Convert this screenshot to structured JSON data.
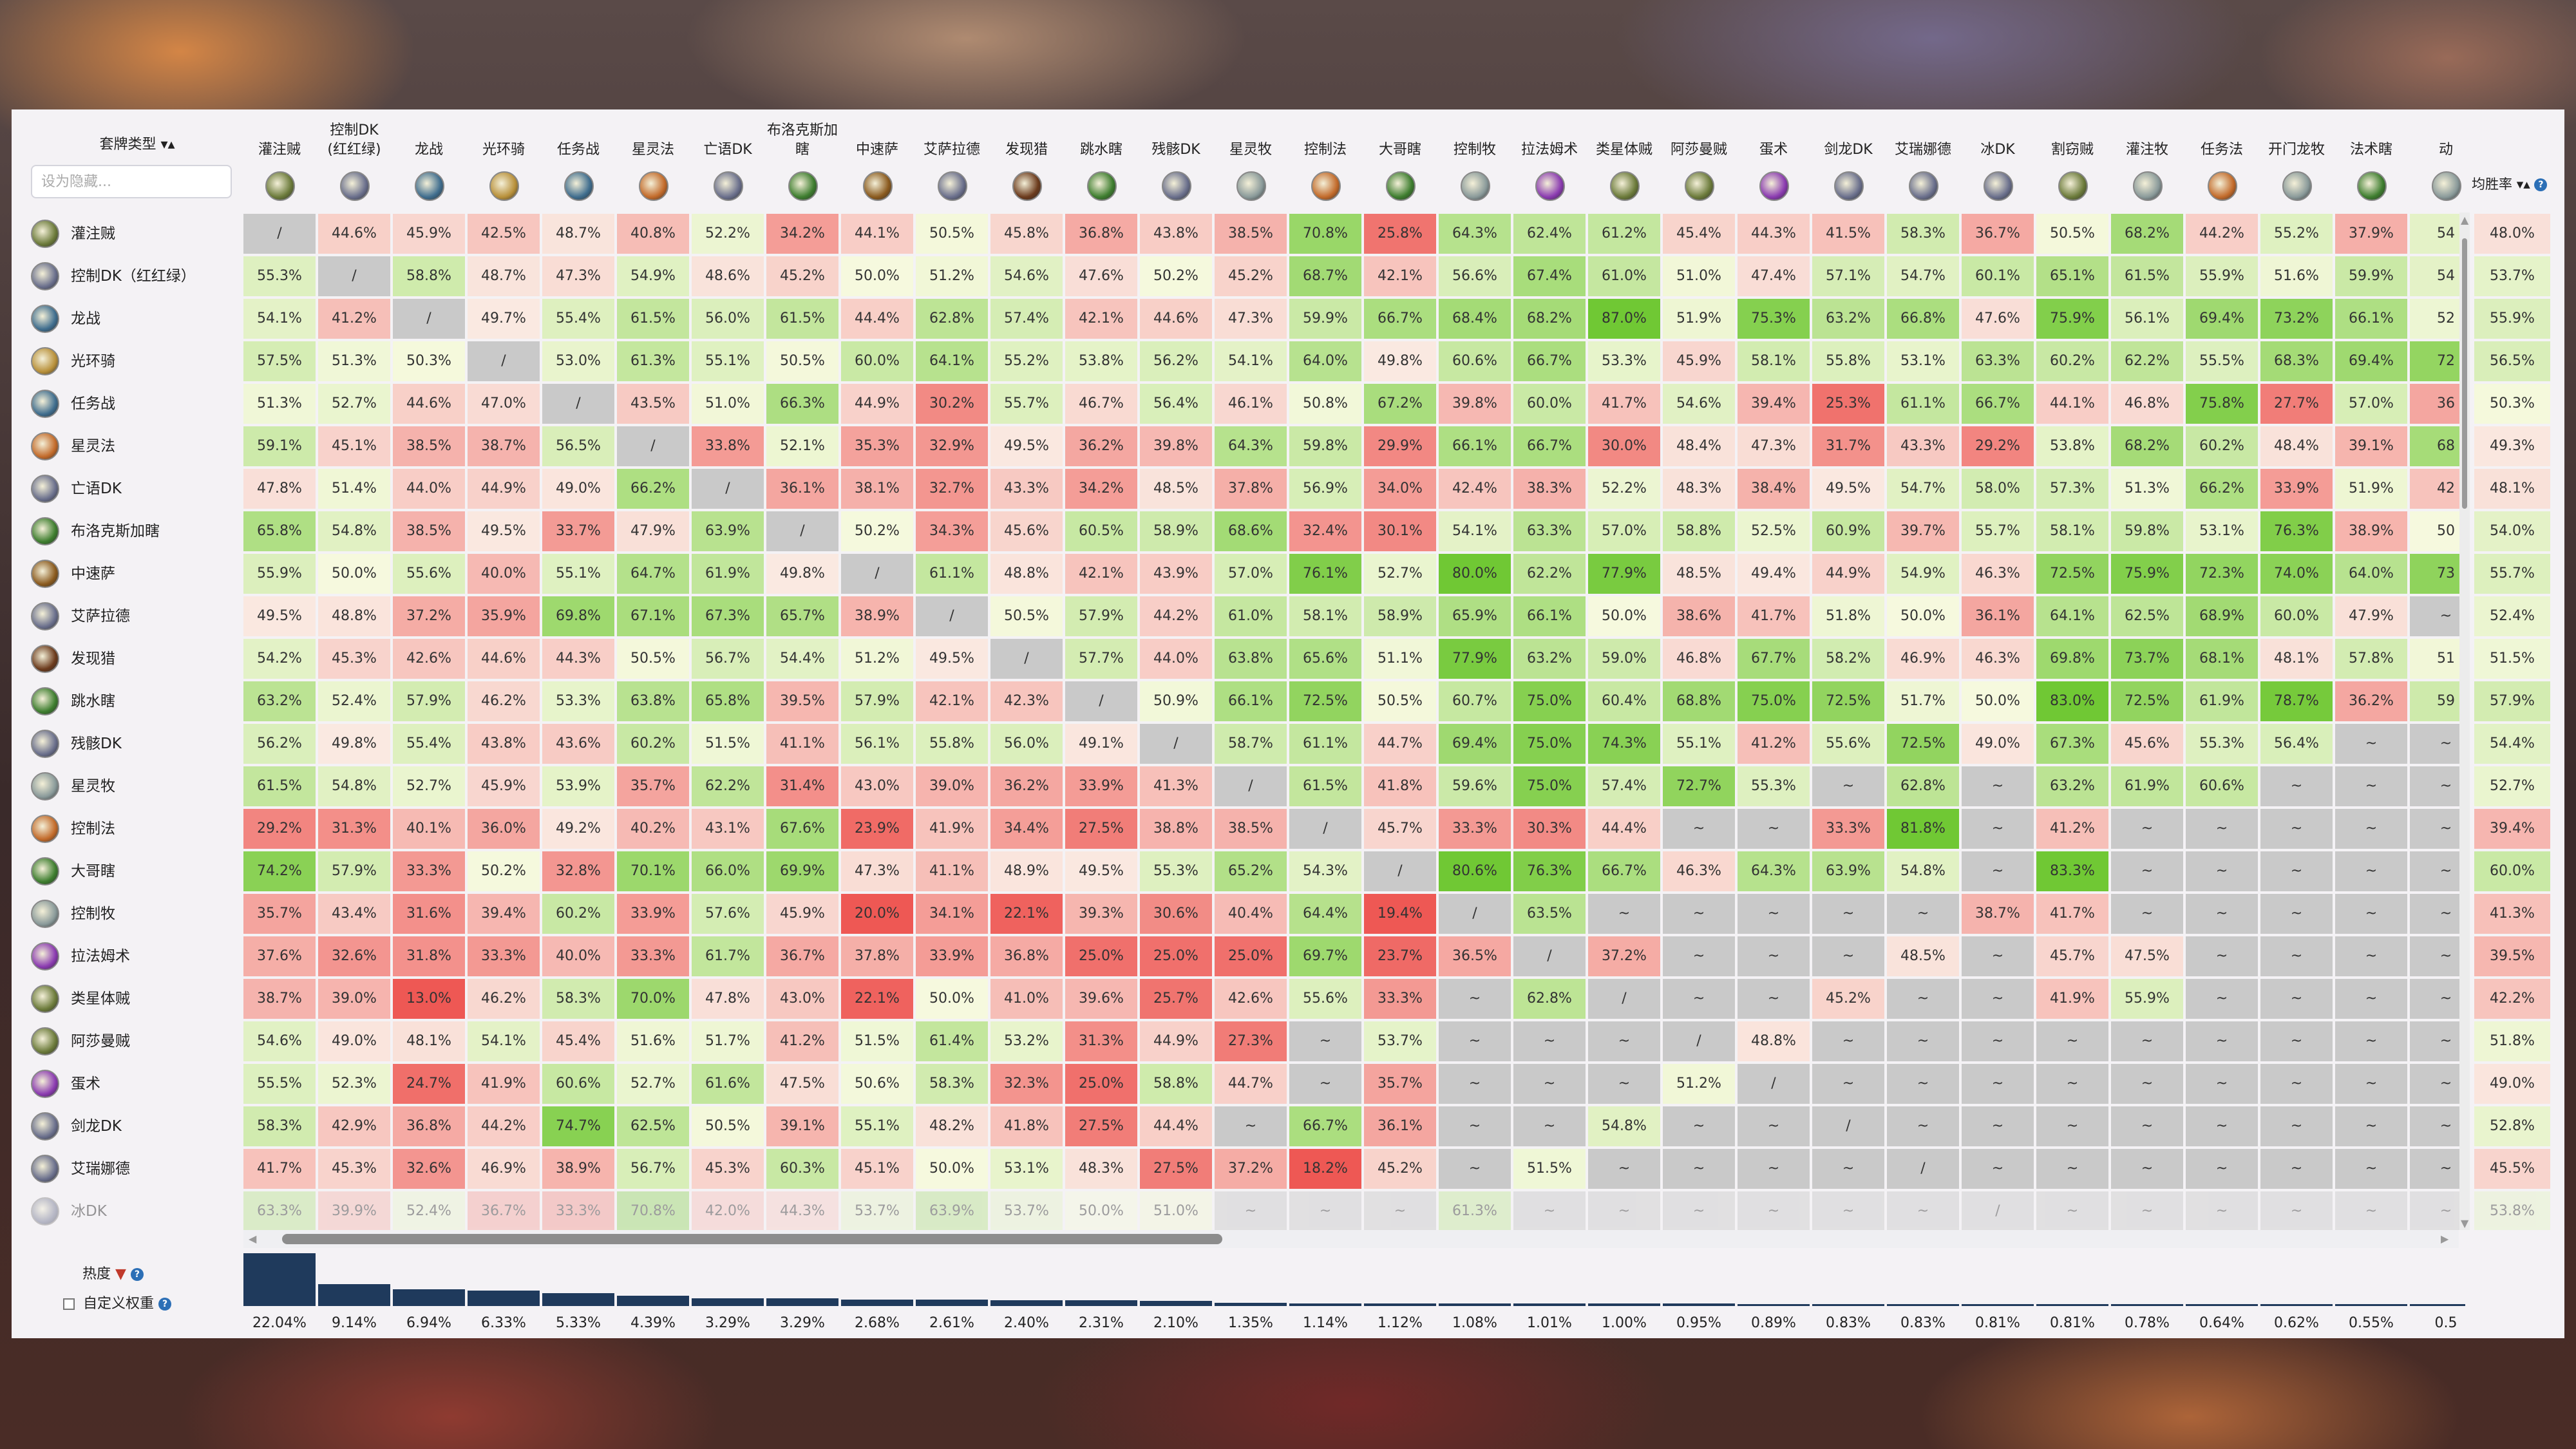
{
  "header": {
    "deck_type_label": "套牌类型",
    "search_placeholder": "设为隐藏...",
    "winrate_label": "均胜率"
  },
  "footer": {
    "popularity_label": "热度",
    "custom_weight_label": "自定义权重"
  },
  "colors": {
    "missing": "#c9c9c9",
    "diagonal": "#c9c9c9",
    "bar": "#1f3a5c"
  },
  "columns": [
    {
      "name": "灌注贼",
      "icon": "rogue-icon"
    },
    {
      "name": "控制DK\n(红红绿)",
      "icon": "death-knight-icon"
    },
    {
      "name": "龙战",
      "icon": "warrior-icon"
    },
    {
      "name": "光环骑",
      "icon": "paladin-icon"
    },
    {
      "name": "任务战",
      "icon": "warrior-icon"
    },
    {
      "name": "星灵法",
      "icon": "mage-icon"
    },
    {
      "name": "亡语DK",
      "icon": "death-knight-icon"
    },
    {
      "name": "布洛克斯加\n瞎",
      "icon": "demon-hunter-icon"
    },
    {
      "name": "中速萨",
      "icon": "shaman-icon"
    },
    {
      "name": "艾萨拉德",
      "icon": "death-knight-icon"
    },
    {
      "name": "发现猎",
      "icon": "hunter-icon"
    },
    {
      "name": "跳水瞎",
      "icon": "demon-hunter-icon"
    },
    {
      "name": "残骸DK",
      "icon": "death-knight-icon"
    },
    {
      "name": "星灵牧",
      "icon": "priest-icon"
    },
    {
      "name": "控制法",
      "icon": "mage-icon"
    },
    {
      "name": "大哥瞎",
      "icon": "demon-hunter-icon"
    },
    {
      "name": "控制牧",
      "icon": "priest-icon"
    },
    {
      "name": "拉法姆术",
      "icon": "warlock-icon"
    },
    {
      "name": "类星体贼",
      "icon": "rogue-icon"
    },
    {
      "name": "阿莎曼贼",
      "icon": "rogue-icon"
    },
    {
      "name": "蛋术",
      "icon": "warlock-icon"
    },
    {
      "name": "剑龙DK",
      "icon": "death-knight-icon"
    },
    {
      "name": "艾瑞娜德",
      "icon": "death-knight-icon"
    },
    {
      "name": "冰DK",
      "icon": "death-knight-icon"
    },
    {
      "name": "割窃贼",
      "icon": "rogue-icon"
    },
    {
      "name": "灌注牧",
      "icon": "priest-icon"
    },
    {
      "name": "任务法",
      "icon": "mage-icon"
    },
    {
      "name": "开门龙牧",
      "icon": "priest-icon"
    },
    {
      "name": "法术瞎",
      "icon": "demon-hunter-icon"
    },
    {
      "name": "动",
      "icon": "priest-icon"
    }
  ],
  "rows": [
    {
      "name": "灌注贼",
      "icon": "rogue-icon",
      "winrate": "48.0%",
      "cells": [
        "/",
        "44.6%",
        "45.9%",
        "42.5%",
        "48.7%",
        "40.8%",
        "52.2%",
        "34.2%",
        "44.1%",
        "50.5%",
        "45.8%",
        "36.8%",
        "43.8%",
        "38.5%",
        "70.8%",
        "25.8%",
        "64.3%",
        "62.4%",
        "61.2%",
        "45.4%",
        "44.3%",
        "41.5%",
        "58.3%",
        "36.7%",
        "50.5%",
        "68.2%",
        "44.2%",
        "55.2%",
        "37.9%",
        "54"
      ]
    },
    {
      "name": "控制DK（红红绿）",
      "icon": "death-knight-icon",
      "winrate": "53.7%",
      "cells": [
        "55.3%",
        "/",
        "58.8%",
        "48.7%",
        "47.3%",
        "54.9%",
        "48.6%",
        "45.2%",
        "50.0%",
        "51.2%",
        "54.6%",
        "47.6%",
        "50.2%",
        "45.2%",
        "68.7%",
        "42.1%",
        "56.6%",
        "67.4%",
        "61.0%",
        "51.0%",
        "47.4%",
        "57.1%",
        "54.7%",
        "60.1%",
        "65.1%",
        "61.5%",
        "55.9%",
        "51.6%",
        "59.9%",
        "54"
      ]
    },
    {
      "name": "龙战",
      "icon": "warrior-icon",
      "winrate": "55.9%",
      "cells": [
        "54.1%",
        "41.2%",
        "/",
        "49.7%",
        "55.4%",
        "61.5%",
        "56.0%",
        "61.5%",
        "44.4%",
        "62.8%",
        "57.4%",
        "42.1%",
        "44.6%",
        "47.3%",
        "59.9%",
        "66.7%",
        "68.4%",
        "68.2%",
        "87.0%",
        "51.9%",
        "75.3%",
        "63.2%",
        "66.8%",
        "47.6%",
        "75.9%",
        "56.1%",
        "69.4%",
        "73.2%",
        "66.1%",
        "52"
      ]
    },
    {
      "name": "光环骑",
      "icon": "paladin-icon",
      "winrate": "56.5%",
      "cells": [
        "57.5%",
        "51.3%",
        "50.3%",
        "/",
        "53.0%",
        "61.3%",
        "55.1%",
        "50.5%",
        "60.0%",
        "64.1%",
        "55.2%",
        "53.8%",
        "56.2%",
        "54.1%",
        "64.0%",
        "49.8%",
        "60.6%",
        "66.7%",
        "53.3%",
        "45.9%",
        "58.1%",
        "55.8%",
        "53.1%",
        "63.3%",
        "60.2%",
        "62.2%",
        "55.5%",
        "68.3%",
        "69.4%",
        "72"
      ]
    },
    {
      "name": "任务战",
      "icon": "warrior-icon",
      "winrate": "50.3%",
      "cells": [
        "51.3%",
        "52.7%",
        "44.6%",
        "47.0%",
        "/",
        "43.5%",
        "51.0%",
        "66.3%",
        "44.9%",
        "30.2%",
        "55.7%",
        "46.7%",
        "56.4%",
        "46.1%",
        "50.8%",
        "67.2%",
        "39.8%",
        "60.0%",
        "41.7%",
        "54.6%",
        "39.4%",
        "25.3%",
        "61.1%",
        "66.7%",
        "44.1%",
        "46.8%",
        "75.8%",
        "27.7%",
        "57.0%",
        "36"
      ]
    },
    {
      "name": "星灵法",
      "icon": "mage-icon",
      "winrate": "49.3%",
      "cells": [
        "59.1%",
        "45.1%",
        "38.5%",
        "38.7%",
        "56.5%",
        "/",
        "33.8%",
        "52.1%",
        "35.3%",
        "32.9%",
        "49.5%",
        "36.2%",
        "39.8%",
        "64.3%",
        "59.8%",
        "29.9%",
        "66.1%",
        "66.7%",
        "30.0%",
        "48.4%",
        "47.3%",
        "31.7%",
        "43.3%",
        "29.2%",
        "53.8%",
        "68.2%",
        "60.2%",
        "48.4%",
        "39.1%",
        "68"
      ]
    },
    {
      "name": "亡语DK",
      "icon": "death-knight-icon",
      "winrate": "48.1%",
      "cells": [
        "47.8%",
        "51.4%",
        "44.0%",
        "44.9%",
        "49.0%",
        "66.2%",
        "/",
        "36.1%",
        "38.1%",
        "32.7%",
        "43.3%",
        "34.2%",
        "48.5%",
        "37.8%",
        "56.9%",
        "34.0%",
        "42.4%",
        "38.3%",
        "52.2%",
        "48.3%",
        "38.4%",
        "49.5%",
        "54.7%",
        "58.0%",
        "57.3%",
        "51.3%",
        "66.2%",
        "33.9%",
        "51.9%",
        "42"
      ]
    },
    {
      "name": "布洛克斯加瞎",
      "icon": "demon-hunter-icon",
      "winrate": "54.0%",
      "cells": [
        "65.8%",
        "54.8%",
        "38.5%",
        "49.5%",
        "33.7%",
        "47.9%",
        "63.9%",
        "/",
        "50.2%",
        "34.3%",
        "45.6%",
        "60.5%",
        "58.9%",
        "68.6%",
        "32.4%",
        "30.1%",
        "54.1%",
        "63.3%",
        "57.0%",
        "58.8%",
        "52.5%",
        "60.9%",
        "39.7%",
        "55.7%",
        "58.1%",
        "59.8%",
        "53.1%",
        "76.3%",
        "38.9%",
        "50"
      ]
    },
    {
      "name": "中速萨",
      "icon": "shaman-icon",
      "winrate": "55.7%",
      "cells": [
        "55.9%",
        "50.0%",
        "55.6%",
        "40.0%",
        "55.1%",
        "64.7%",
        "61.9%",
        "49.8%",
        "/",
        "61.1%",
        "48.8%",
        "42.1%",
        "43.9%",
        "57.0%",
        "76.1%",
        "52.7%",
        "80.0%",
        "62.2%",
        "77.9%",
        "48.5%",
        "49.4%",
        "44.9%",
        "54.9%",
        "46.3%",
        "72.5%",
        "75.9%",
        "72.3%",
        "74.0%",
        "64.0%",
        "73"
      ]
    },
    {
      "name": "艾萨拉德",
      "icon": "death-knight-icon",
      "winrate": "52.4%",
      "cells": [
        "49.5%",
        "48.8%",
        "37.2%",
        "35.9%",
        "69.8%",
        "67.1%",
        "67.3%",
        "65.7%",
        "38.9%",
        "/",
        "50.5%",
        "57.9%",
        "44.2%",
        "61.0%",
        "58.1%",
        "58.9%",
        "65.9%",
        "66.1%",
        "50.0%",
        "38.6%",
        "41.7%",
        "51.8%",
        "50.0%",
        "36.1%",
        "64.1%",
        "62.5%",
        "68.9%",
        "60.0%",
        "47.9%",
        "~"
      ]
    },
    {
      "name": "发现猎",
      "icon": "hunter-icon",
      "winrate": "51.5%",
      "cells": [
        "54.2%",
        "45.3%",
        "42.6%",
        "44.6%",
        "44.3%",
        "50.5%",
        "56.7%",
        "54.4%",
        "51.2%",
        "49.5%",
        "/",
        "57.7%",
        "44.0%",
        "63.8%",
        "65.6%",
        "51.1%",
        "77.9%",
        "63.2%",
        "59.0%",
        "46.8%",
        "67.7%",
        "58.2%",
        "46.9%",
        "46.3%",
        "69.8%",
        "73.7%",
        "68.1%",
        "48.1%",
        "57.8%",
        "51"
      ]
    },
    {
      "name": "跳水瞎",
      "icon": "demon-hunter-icon",
      "winrate": "57.9%",
      "cells": [
        "63.2%",
        "52.4%",
        "57.9%",
        "46.2%",
        "53.3%",
        "63.8%",
        "65.8%",
        "39.5%",
        "57.9%",
        "42.1%",
        "42.3%",
        "/",
        "50.9%",
        "66.1%",
        "72.5%",
        "50.5%",
        "60.7%",
        "75.0%",
        "60.4%",
        "68.8%",
        "75.0%",
        "72.5%",
        "51.7%",
        "50.0%",
        "83.0%",
        "72.5%",
        "61.9%",
        "78.7%",
        "36.2%",
        "59"
      ]
    },
    {
      "name": "残骸DK",
      "icon": "death-knight-icon",
      "winrate": "54.4%",
      "cells": [
        "56.2%",
        "49.8%",
        "55.4%",
        "43.8%",
        "43.6%",
        "60.2%",
        "51.5%",
        "41.1%",
        "56.1%",
        "55.8%",
        "56.0%",
        "49.1%",
        "/",
        "58.7%",
        "61.1%",
        "44.7%",
        "69.4%",
        "75.0%",
        "74.3%",
        "55.1%",
        "41.2%",
        "55.6%",
        "72.5%",
        "49.0%",
        "67.3%",
        "45.6%",
        "55.3%",
        "56.4%",
        "~",
        "~"
      ]
    },
    {
      "name": "星灵牧",
      "icon": "priest-icon",
      "winrate": "52.7%",
      "cells": [
        "61.5%",
        "54.8%",
        "52.7%",
        "45.9%",
        "53.9%",
        "35.7%",
        "62.2%",
        "31.4%",
        "43.0%",
        "39.0%",
        "36.2%",
        "33.9%",
        "41.3%",
        "/",
        "61.5%",
        "41.8%",
        "59.6%",
        "75.0%",
        "57.4%",
        "72.7%",
        "55.3%",
        "~",
        "62.8%",
        "~",
        "63.2%",
        "61.9%",
        "60.6%",
        "~",
        "~",
        "~"
      ]
    },
    {
      "name": "控制法",
      "icon": "mage-icon",
      "winrate": "39.4%",
      "cells": [
        "29.2%",
        "31.3%",
        "40.1%",
        "36.0%",
        "49.2%",
        "40.2%",
        "43.1%",
        "67.6%",
        "23.9%",
        "41.9%",
        "34.4%",
        "27.5%",
        "38.8%",
        "38.5%",
        "/",
        "45.7%",
        "33.3%",
        "30.3%",
        "44.4%",
        "~",
        "~",
        "33.3%",
        "81.8%",
        "~",
        "41.2%",
        "~",
        "~",
        "~",
        "~",
        "~"
      ]
    },
    {
      "name": "大哥瞎",
      "icon": "demon-hunter-icon",
      "winrate": "60.0%",
      "cells": [
        "74.2%",
        "57.9%",
        "33.3%",
        "50.2%",
        "32.8%",
        "70.1%",
        "66.0%",
        "69.9%",
        "47.3%",
        "41.1%",
        "48.9%",
        "49.5%",
        "55.3%",
        "65.2%",
        "54.3%",
        "/",
        "80.6%",
        "76.3%",
        "66.7%",
        "46.3%",
        "64.3%",
        "63.9%",
        "54.8%",
        "~",
        "83.3%",
        "~",
        "~",
        "~",
        "~",
        "~"
      ]
    },
    {
      "name": "控制牧",
      "icon": "priest-icon",
      "winrate": "41.3%",
      "cells": [
        "35.7%",
        "43.4%",
        "31.6%",
        "39.4%",
        "60.2%",
        "33.9%",
        "57.6%",
        "45.9%",
        "20.0%",
        "34.1%",
        "22.1%",
        "39.3%",
        "30.6%",
        "40.4%",
        "64.4%",
        "19.4%",
        "/",
        "63.5%",
        "~",
        "~",
        "~",
        "~",
        "~",
        "38.7%",
        "41.7%",
        "~",
        "~",
        "~",
        "~",
        "~"
      ]
    },
    {
      "name": "拉法姆术",
      "icon": "warlock-icon",
      "winrate": "39.5%",
      "cells": [
        "37.6%",
        "32.6%",
        "31.8%",
        "33.3%",
        "40.0%",
        "33.3%",
        "61.7%",
        "36.7%",
        "37.8%",
        "33.9%",
        "36.8%",
        "25.0%",
        "25.0%",
        "25.0%",
        "69.7%",
        "23.7%",
        "36.5%",
        "/",
        "37.2%",
        "~",
        "~",
        "~",
        "48.5%",
        "~",
        "45.7%",
        "47.5%",
        "~",
        "~",
        "~",
        "~"
      ]
    },
    {
      "name": "类星体贼",
      "icon": "rogue-icon",
      "winrate": "42.2%",
      "cells": [
        "38.7%",
        "39.0%",
        "13.0%",
        "46.2%",
        "58.3%",
        "70.0%",
        "47.8%",
        "43.0%",
        "22.1%",
        "50.0%",
        "41.0%",
        "39.6%",
        "25.7%",
        "42.6%",
        "55.6%",
        "33.3%",
        "~",
        "62.8%",
        "/",
        "~",
        "~",
        "45.2%",
        "~",
        "~",
        "41.9%",
        "55.9%",
        "~",
        "~",
        "~",
        "~"
      ]
    },
    {
      "name": "阿莎曼贼",
      "icon": "rogue-icon",
      "winrate": "51.8%",
      "cells": [
        "54.6%",
        "49.0%",
        "48.1%",
        "54.1%",
        "45.4%",
        "51.6%",
        "51.7%",
        "41.2%",
        "51.5%",
        "61.4%",
        "53.2%",
        "31.3%",
        "44.9%",
        "27.3%",
        "~",
        "53.7%",
        "~",
        "~",
        "~",
        "/",
        "48.8%",
        "~",
        "~",
        "~",
        "~",
        "~",
        "~",
        "~",
        "~",
        "~"
      ]
    },
    {
      "name": "蛋术",
      "icon": "warlock-icon",
      "winrate": "49.0%",
      "cells": [
        "55.5%",
        "52.3%",
        "24.7%",
        "41.9%",
        "60.6%",
        "52.7%",
        "61.6%",
        "47.5%",
        "50.6%",
        "58.3%",
        "32.3%",
        "25.0%",
        "58.8%",
        "44.7%",
        "~",
        "35.7%",
        "~",
        "~",
        "~",
        "51.2%",
        "/",
        "~",
        "~",
        "~",
        "~",
        "~",
        "~",
        "~",
        "~",
        "~"
      ]
    },
    {
      "name": "剑龙DK",
      "icon": "death-knight-icon",
      "winrate": "52.8%",
      "cells": [
        "58.3%",
        "42.9%",
        "36.8%",
        "44.2%",
        "74.7%",
        "62.5%",
        "50.5%",
        "39.1%",
        "55.1%",
        "48.2%",
        "41.8%",
        "27.5%",
        "44.4%",
        "~",
        "66.7%",
        "36.1%",
        "~",
        "~",
        "54.8%",
        "~",
        "~",
        "/",
        "~",
        "~",
        "~",
        "~",
        "~",
        "~",
        "~",
        "~"
      ]
    },
    {
      "name": "艾瑞娜德",
      "icon": "death-knight-icon",
      "winrate": "45.5%",
      "cells": [
        "41.7%",
        "45.3%",
        "32.6%",
        "46.9%",
        "38.9%",
        "56.7%",
        "45.3%",
        "60.3%",
        "45.1%",
        "50.0%",
        "53.1%",
        "48.3%",
        "27.5%",
        "37.2%",
        "18.2%",
        "45.2%",
        "~",
        "51.5%",
        "~",
        "~",
        "~",
        "~",
        "/",
        "~",
        "~",
        "~",
        "~",
        "~",
        "~",
        "~"
      ]
    },
    {
      "name": "冰DK",
      "icon": "death-knight-icon",
      "winrate": "53.8%",
      "cells": [
        "63.3%",
        "39.9%",
        "52.4%",
        "36.7%",
        "33.3%",
        "70.8%",
        "42.0%",
        "44.3%",
        "53.7%",
        "63.9%",
        "53.7%",
        "50.0%",
        "51.0%",
        "~",
        "~",
        "~",
        "61.3%",
        "~",
        "~",
        "~",
        "~",
        "~",
        "~",
        "/",
        "~",
        "~",
        "~",
        "~",
        "~",
        "~"
      ]
    }
  ],
  "popularity": [
    22.04,
    9.14,
    6.94,
    6.33,
    5.33,
    4.39,
    3.29,
    3.29,
    2.68,
    2.61,
    2.4,
    2.31,
    2.1,
    1.35,
    1.14,
    1.12,
    1.08,
    1.01,
    1.0,
    0.95,
    0.89,
    0.83,
    0.83,
    0.81,
    0.81,
    0.78,
    0.64,
    0.62,
    0.55,
    0.5
  ],
  "popularity_labels": [
    "22.04%",
    "9.14%",
    "6.94%",
    "6.33%",
    "5.33%",
    "4.39%",
    "3.29%",
    "3.29%",
    "2.68%",
    "2.61%",
    "2.40%",
    "2.31%",
    "2.10%",
    "1.35%",
    "1.14%",
    "1.12%",
    "1.08%",
    "1.01%",
    "1.00%",
    "0.95%",
    "0.89%",
    "0.83%",
    "0.83%",
    "0.81%",
    "0.81%",
    "0.78%",
    "0.64%",
    "0.62%",
    "0.55%",
    "0.5"
  ]
}
